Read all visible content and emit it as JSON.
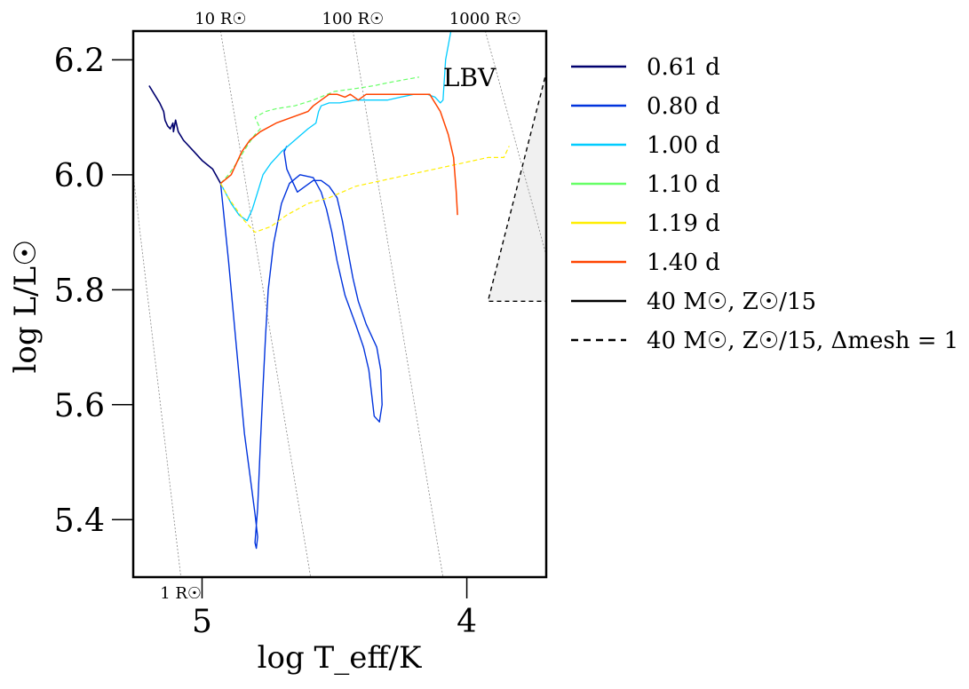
{
  "chart_data": {
    "type": "line",
    "title": "",
    "xlabel": "log T_eff/K",
    "ylabel": "log L/L☉",
    "xlim": [
      5.26,
      3.7
    ],
    "ylim": [
      5.3,
      6.25
    ],
    "x_inverted": true,
    "x_ticks": [
      {
        "value": 5.0,
        "label": "5"
      },
      {
        "value": 4.0,
        "label": "4"
      }
    ],
    "y_ticks": [
      {
        "value": 5.4,
        "label": "5.4"
      },
      {
        "value": 5.6,
        "label": "5.6"
      },
      {
        "value": 5.8,
        "label": "5.8"
      },
      {
        "value": 6.0,
        "label": "6.0"
      },
      {
        "value": 6.2,
        "label": "6.2"
      }
    ],
    "grid": false,
    "legend_position": "outside-right",
    "annotations": [
      {
        "text": "LBV",
        "x": 3.99,
        "y": 6.17
      }
    ],
    "lbv_region": {
      "boundary": [
        [
          3.66,
          6.25
        ],
        [
          3.92,
          5.78
        ],
        [
          3.7,
          5.78
        ]
      ],
      "fill": "#f0f0f0"
    },
    "radius_lines": [
      {
        "label": "1 R☉",
        "pts": [
          [
            5.26,
            6.0
          ],
          [
            5.08,
            5.3
          ]
        ],
        "label_x": 5.08,
        "label_pos": "bottom"
      },
      {
        "label": "10 R☉",
        "pts": [
          [
            4.93,
            6.25
          ],
          [
            4.59,
            5.3
          ]
        ],
        "label_x": 4.93,
        "label_pos": "top"
      },
      {
        "label": "100 R☉",
        "pts": [
          [
            4.43,
            6.25
          ],
          [
            4.09,
            5.3
          ]
        ],
        "label_x": 4.43,
        "label_pos": "top"
      },
      {
        "label": "1000 R☉",
        "pts": [
          [
            3.93,
            6.25
          ],
          [
            3.7,
            5.86
          ]
        ],
        "label_x": 3.93,
        "label_pos": "top"
      }
    ],
    "series": [
      {
        "name": "0.61 d",
        "color": "#00006e",
        "dash": "solid",
        "width": 1.6,
        "points": [
          [
            5.2,
            6.155
          ],
          [
            5.18,
            6.14
          ],
          [
            5.16,
            6.125
          ],
          [
            5.145,
            6.11
          ],
          [
            5.14,
            6.095
          ],
          [
            5.13,
            6.085
          ],
          [
            5.12,
            6.08
          ],
          [
            5.11,
            6.09
          ],
          [
            5.108,
            6.075
          ],
          [
            5.1,
            6.095
          ],
          [
            5.09,
            6.075
          ],
          [
            5.07,
            6.06
          ],
          [
            5.03,
            6.04
          ],
          [
            5.0,
            6.025
          ],
          [
            4.96,
            6.01
          ],
          [
            4.93,
            5.985
          ]
        ]
      },
      {
        "name": "0.80 d",
        "color": "#0033dd",
        "dash": "solid",
        "width": 1.4,
        "points": [
          [
            4.93,
            5.985
          ],
          [
            4.9,
            5.85
          ],
          [
            4.87,
            5.7
          ],
          [
            4.84,
            5.55
          ],
          [
            4.82,
            5.48
          ],
          [
            4.8,
            5.41
          ],
          [
            4.79,
            5.37
          ],
          [
            4.795,
            5.35
          ],
          [
            4.8,
            5.36
          ],
          [
            4.79,
            5.42
          ],
          [
            4.78,
            5.53
          ],
          [
            4.77,
            5.63
          ],
          [
            4.76,
            5.72
          ],
          [
            4.75,
            5.8
          ],
          [
            4.73,
            5.88
          ],
          [
            4.7,
            5.95
          ],
          [
            4.67,
            5.985
          ],
          [
            4.63,
            6.0
          ],
          [
            4.58,
            5.995
          ],
          [
            4.55,
            5.97
          ],
          [
            4.53,
            5.94
          ],
          [
            4.51,
            5.9
          ],
          [
            4.49,
            5.85
          ],
          [
            4.46,
            5.79
          ],
          [
            4.42,
            5.74
          ],
          [
            4.39,
            5.7
          ],
          [
            4.37,
            5.66
          ],
          [
            4.36,
            5.62
          ],
          [
            4.35,
            5.58
          ],
          [
            4.33,
            5.57
          ],
          [
            4.32,
            5.6
          ],
          [
            4.325,
            5.66
          ],
          [
            4.34,
            5.7
          ],
          [
            4.38,
            5.74
          ],
          [
            4.41,
            5.78
          ],
          [
            4.43,
            5.82
          ],
          [
            4.45,
            5.87
          ],
          [
            4.47,
            5.92
          ],
          [
            4.49,
            5.96
          ],
          [
            4.52,
            5.98
          ],
          [
            4.55,
            5.99
          ],
          [
            4.58,
            5.99
          ],
          [
            4.61,
            5.98
          ],
          [
            4.64,
            5.97
          ],
          [
            4.66,
            5.99
          ],
          [
            4.68,
            6.01
          ],
          [
            4.69,
            6.04
          ],
          [
            4.68,
            6.05
          ]
        ]
      },
      {
        "name": "1.00 d",
        "color": "#00ccff",
        "dash": "solid",
        "width": 1.3,
        "points": [
          [
            4.93,
            5.985
          ],
          [
            4.89,
            5.95
          ],
          [
            4.86,
            5.93
          ],
          [
            4.83,
            5.92
          ],
          [
            4.81,
            5.94
          ],
          [
            4.79,
            5.97
          ],
          [
            4.77,
            6.0
          ],
          [
            4.74,
            6.02
          ],
          [
            4.7,
            6.04
          ],
          [
            4.65,
            6.06
          ],
          [
            4.6,
            6.08
          ],
          [
            4.57,
            6.09
          ],
          [
            4.56,
            6.11
          ],
          [
            4.55,
            6.12
          ],
          [
            4.52,
            6.125
          ],
          [
            4.48,
            6.125
          ],
          [
            4.42,
            6.13
          ],
          [
            4.36,
            6.13
          ],
          [
            4.3,
            6.13
          ],
          [
            4.25,
            6.135
          ],
          [
            4.2,
            6.14
          ],
          [
            4.15,
            6.14
          ],
          [
            4.12,
            6.135
          ],
          [
            4.11,
            6.13
          ],
          [
            4.1,
            6.125
          ],
          [
            4.09,
            6.13
          ],
          [
            4.08,
            6.2
          ],
          [
            4.06,
            6.25
          ]
        ]
      },
      {
        "name": "1.10 d",
        "color": "#66ff66",
        "dash": "dashed",
        "width": 1.2,
        "points": [
          [
            4.93,
            5.985
          ],
          [
            4.9,
            6.0
          ],
          [
            4.87,
            6.02
          ],
          [
            4.83,
            6.05
          ],
          [
            4.8,
            6.07
          ],
          [
            4.78,
            6.08
          ],
          [
            4.8,
            6.1
          ],
          [
            4.76,
            6.11
          ],
          [
            4.72,
            6.115
          ],
          [
            4.65,
            6.12
          ],
          [
            4.58,
            6.13
          ],
          [
            4.5,
            6.145
          ],
          [
            4.42,
            6.15
          ],
          [
            4.35,
            6.155
          ],
          [
            4.3,
            6.16
          ],
          [
            4.24,
            6.165
          ],
          [
            4.18,
            6.17
          ]
        ]
      },
      {
        "name": "1.19 d",
        "color": "#ffee00",
        "dash": "dashed",
        "width": 1.2,
        "points": [
          [
            4.93,
            5.985
          ],
          [
            4.9,
            5.96
          ],
          [
            4.87,
            5.94
          ],
          [
            4.84,
            5.92
          ],
          [
            4.8,
            5.9
          ],
          [
            4.74,
            5.91
          ],
          [
            4.68,
            5.93
          ],
          [
            4.6,
            5.95
          ],
          [
            4.52,
            5.96
          ],
          [
            4.42,
            5.98
          ],
          [
            4.32,
            5.99
          ],
          [
            4.22,
            6.0
          ],
          [
            4.12,
            6.01
          ],
          [
            4.02,
            6.02
          ],
          [
            3.92,
            6.03
          ],
          [
            3.86,
            6.03
          ],
          [
            3.84,
            6.05
          ]
        ]
      },
      {
        "name": "1.40 d",
        "color": "#ff4400",
        "dash": "solid",
        "width": 1.5,
        "points": [
          [
            4.93,
            5.985
          ],
          [
            4.89,
            6.0
          ],
          [
            4.85,
            6.04
          ],
          [
            4.82,
            6.06
          ],
          [
            4.78,
            6.075
          ],
          [
            4.72,
            6.09
          ],
          [
            4.66,
            6.1
          ],
          [
            4.6,
            6.11
          ],
          [
            4.58,
            6.12
          ],
          [
            4.55,
            6.13
          ],
          [
            4.52,
            6.14
          ],
          [
            4.49,
            6.14
          ],
          [
            4.46,
            6.135
          ],
          [
            4.44,
            6.14
          ],
          [
            4.41,
            6.13
          ],
          [
            4.38,
            6.14
          ],
          [
            4.32,
            6.14
          ],
          [
            4.25,
            6.14
          ],
          [
            4.18,
            6.14
          ],
          [
            4.14,
            6.14
          ],
          [
            4.1,
            6.11
          ],
          [
            4.07,
            6.07
          ],
          [
            4.05,
            6.03
          ],
          [
            4.04,
            5.97
          ],
          [
            4.035,
            5.93
          ]
        ]
      }
    ],
    "legend_entries": [
      {
        "label": "0.61 d",
        "color": "#00006e",
        "dash": "solid"
      },
      {
        "label": "0.80 d",
        "color": "#0033dd",
        "dash": "solid"
      },
      {
        "label": "1.00 d",
        "color": "#00ccff",
        "dash": "solid"
      },
      {
        "label": "1.10 d",
        "color": "#66ff66",
        "dash": "solid"
      },
      {
        "label": "1.19 d",
        "color": "#ffee00",
        "dash": "solid"
      },
      {
        "label": "1.40 d",
        "color": "#ff4400",
        "dash": "solid"
      },
      {
        "label": "40 M☉, Z☉/15",
        "color": "#000000",
        "dash": "solid"
      },
      {
        "label": "40 M☉, Z☉/15, Δmesh = 1",
        "color": "#000000",
        "dash": "dashed"
      }
    ]
  }
}
